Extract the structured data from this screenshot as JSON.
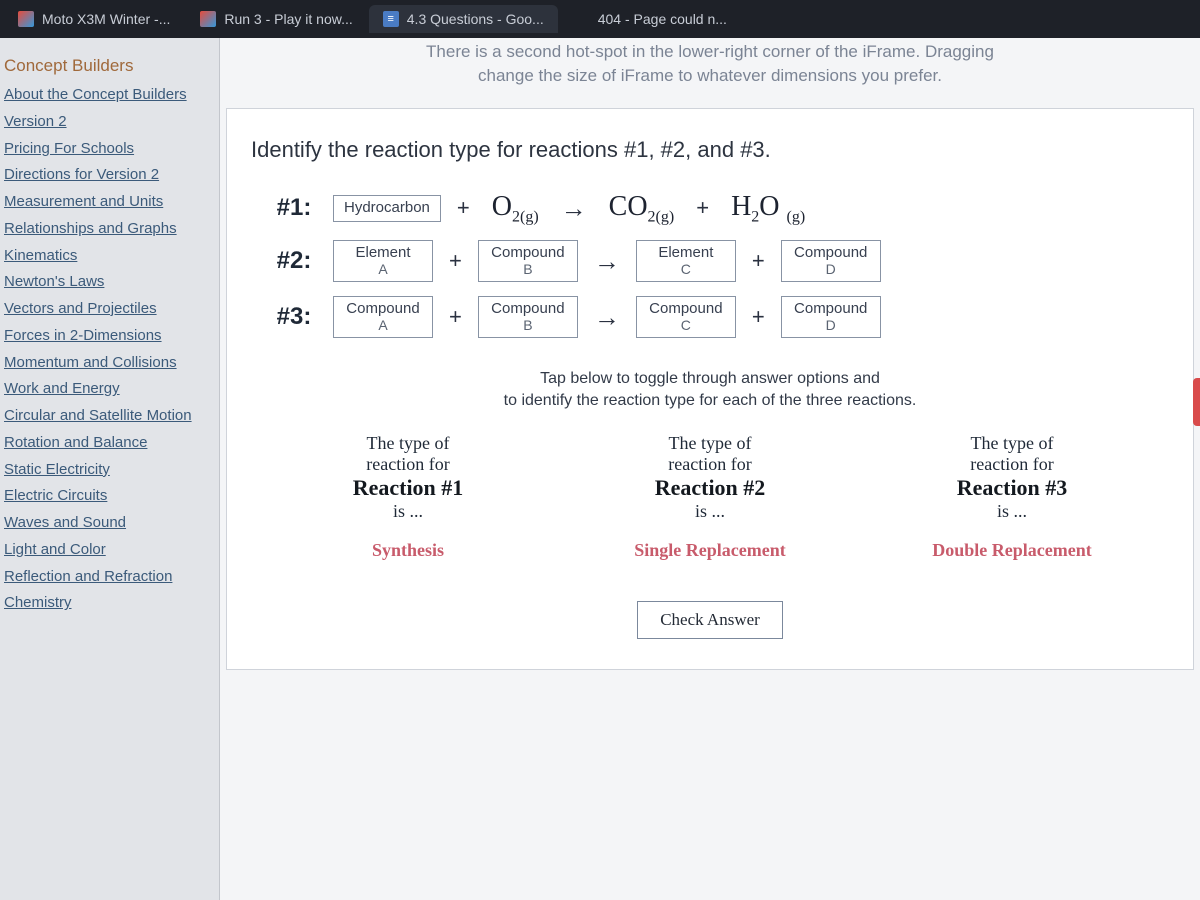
{
  "tabs": [
    {
      "label": "Moto X3M Winter -...",
      "favicon": "game"
    },
    {
      "label": "Run 3 - Play it now...",
      "favicon": "game"
    },
    {
      "label": "4.3 Questions - Goo...",
      "favicon": "doc"
    },
    {
      "label": "404 - Page could n...",
      "favicon": "blank"
    }
  ],
  "sidebar": {
    "heading": "Concept Builders",
    "links": [
      "About the Concept Builders",
      "Version 2",
      "Pricing For Schools",
      "Directions for Version 2",
      "Measurement and Units",
      "Relationships and Graphs",
      "Kinematics",
      "Newton's Laws",
      "Vectors and Projectiles",
      "Forces in 2-Dimensions",
      "Momentum and Collisions",
      "Work and Energy",
      "Circular and Satellite Motion",
      "Rotation and Balance",
      "Static Electricity",
      "Electric Circuits",
      "Waves and Sound",
      "Light and Color",
      "Reflection and Refraction",
      "Chemistry"
    ]
  },
  "banner": {
    "line1": "There is a second hot-spot in the lower-right corner of the iFrame. Dragging",
    "line2": "change the size of iFrame to whatever dimensions you prefer."
  },
  "prompt": "Identify the reaction type for reactions #1, #2, and #3.",
  "reactions": {
    "r1": {
      "label": "#1:",
      "a": "Hydrocarbon",
      "bFormula": "O<sub>2(g)</sub>",
      "cFormula": "CO<sub>2(g)</sub>",
      "dFormula": "H<sub>2</sub>O <sub>(g)</sub>"
    },
    "r2": {
      "label": "#2:",
      "a1": "Element",
      "a2": "A",
      "b1": "Compound",
      "b2": "B",
      "c1": "Element",
      "c2": "C",
      "d1": "Compound",
      "d2": "D"
    },
    "r3": {
      "label": "#3:",
      "a1": "Compound",
      "a2": "A",
      "b1": "Compound",
      "b2": "B",
      "c1": "Compound",
      "c2": "C",
      "d1": "Compound",
      "d2": "D"
    }
  },
  "instruction": {
    "l1": "Tap below to toggle through answer options and",
    "l2": "to identify the reaction type for each of the three reactions."
  },
  "answers": {
    "c1": {
      "lead": "The type of",
      "lead2": "reaction for",
      "rx": "Reaction #1",
      "is": "is ...",
      "choice": "Synthesis"
    },
    "c2": {
      "lead": "The type of",
      "lead2": "reaction for",
      "rx": "Reaction #2",
      "is": "is ...",
      "choice": "Single Replacement"
    },
    "c3": {
      "lead": "The type of",
      "lead2": "reaction for",
      "rx": "Reaction #3",
      "is": "is ...",
      "choice": "Double Replacement"
    }
  },
  "check": "Check Answer",
  "ops": {
    "plus": "+",
    "arrow": "→"
  }
}
